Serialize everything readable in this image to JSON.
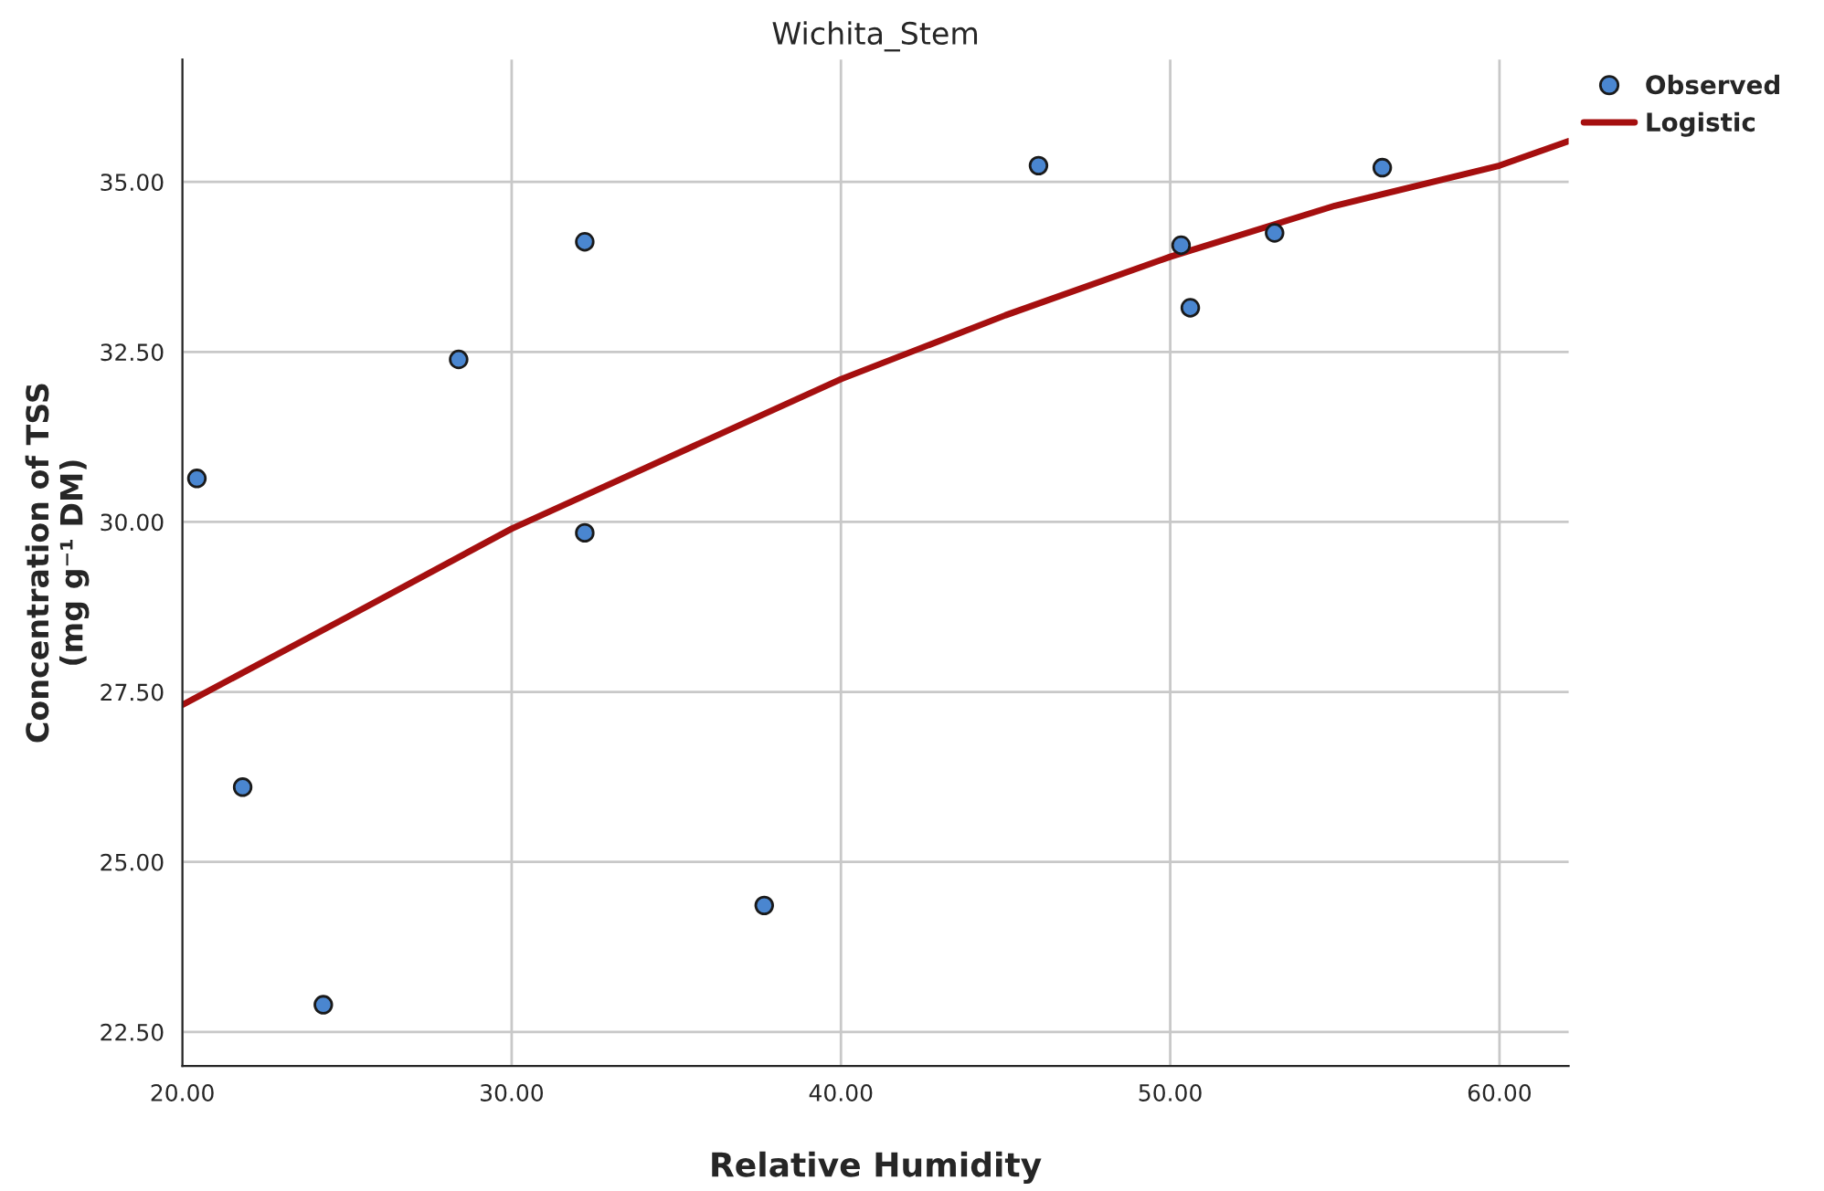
{
  "chart_data": {
    "type": "scatter",
    "title": "Wichita_Stem",
    "xlabel": "Relative Humidity",
    "ylabel": "Concentration of TSS\n(mg g⁻¹ DM)",
    "xlim": [
      20.0,
      62.1
    ],
    "ylim": [
      22.0,
      36.8
    ],
    "xticks": [
      {
        "value": 20,
        "label": "20.00"
      },
      {
        "value": 30,
        "label": "30.00"
      },
      {
        "value": 40,
        "label": "40.00"
      },
      {
        "value": 50,
        "label": "50.00"
      },
      {
        "value": 60,
        "label": "60.00"
      }
    ],
    "yticks": [
      {
        "value": 22.5,
        "label": "22.50"
      },
      {
        "value": 25,
        "label": "25.00"
      },
      {
        "value": 27.5,
        "label": "27.50"
      },
      {
        "value": 30,
        "label": "30.00"
      },
      {
        "value": 32.5,
        "label": "32.50"
      },
      {
        "value": 35,
        "label": "35.00"
      }
    ],
    "grid": true,
    "legend": "top right",
    "marker": "circle",
    "series": [
      {
        "name": "Observed",
        "color": "#4a86d0",
        "x": [
          20.44,
          21.83,
          24.28,
          28.39,
          32.22,
          32.22,
          37.67,
          46.0,
          50.33,
          50.61,
          53.17,
          56.44
        ],
        "values": [
          30.64,
          26.1,
          22.9,
          32.39,
          34.12,
          29.84,
          24.36,
          35.24,
          34.07,
          33.15,
          34.25,
          35.21
        ]
      },
      {
        "name": "Logistic",
        "type": "line",
        "color": "#a50f0f",
        "marker": "none",
        "x": [
          20,
          25,
          30,
          35,
          40,
          45,
          50,
          55,
          60,
          62.1
        ],
        "values": [
          27.31,
          28.6,
          29.9,
          31.0,
          32.1,
          33.04,
          33.9,
          34.65,
          35.24,
          35.6
        ]
      }
    ]
  }
}
